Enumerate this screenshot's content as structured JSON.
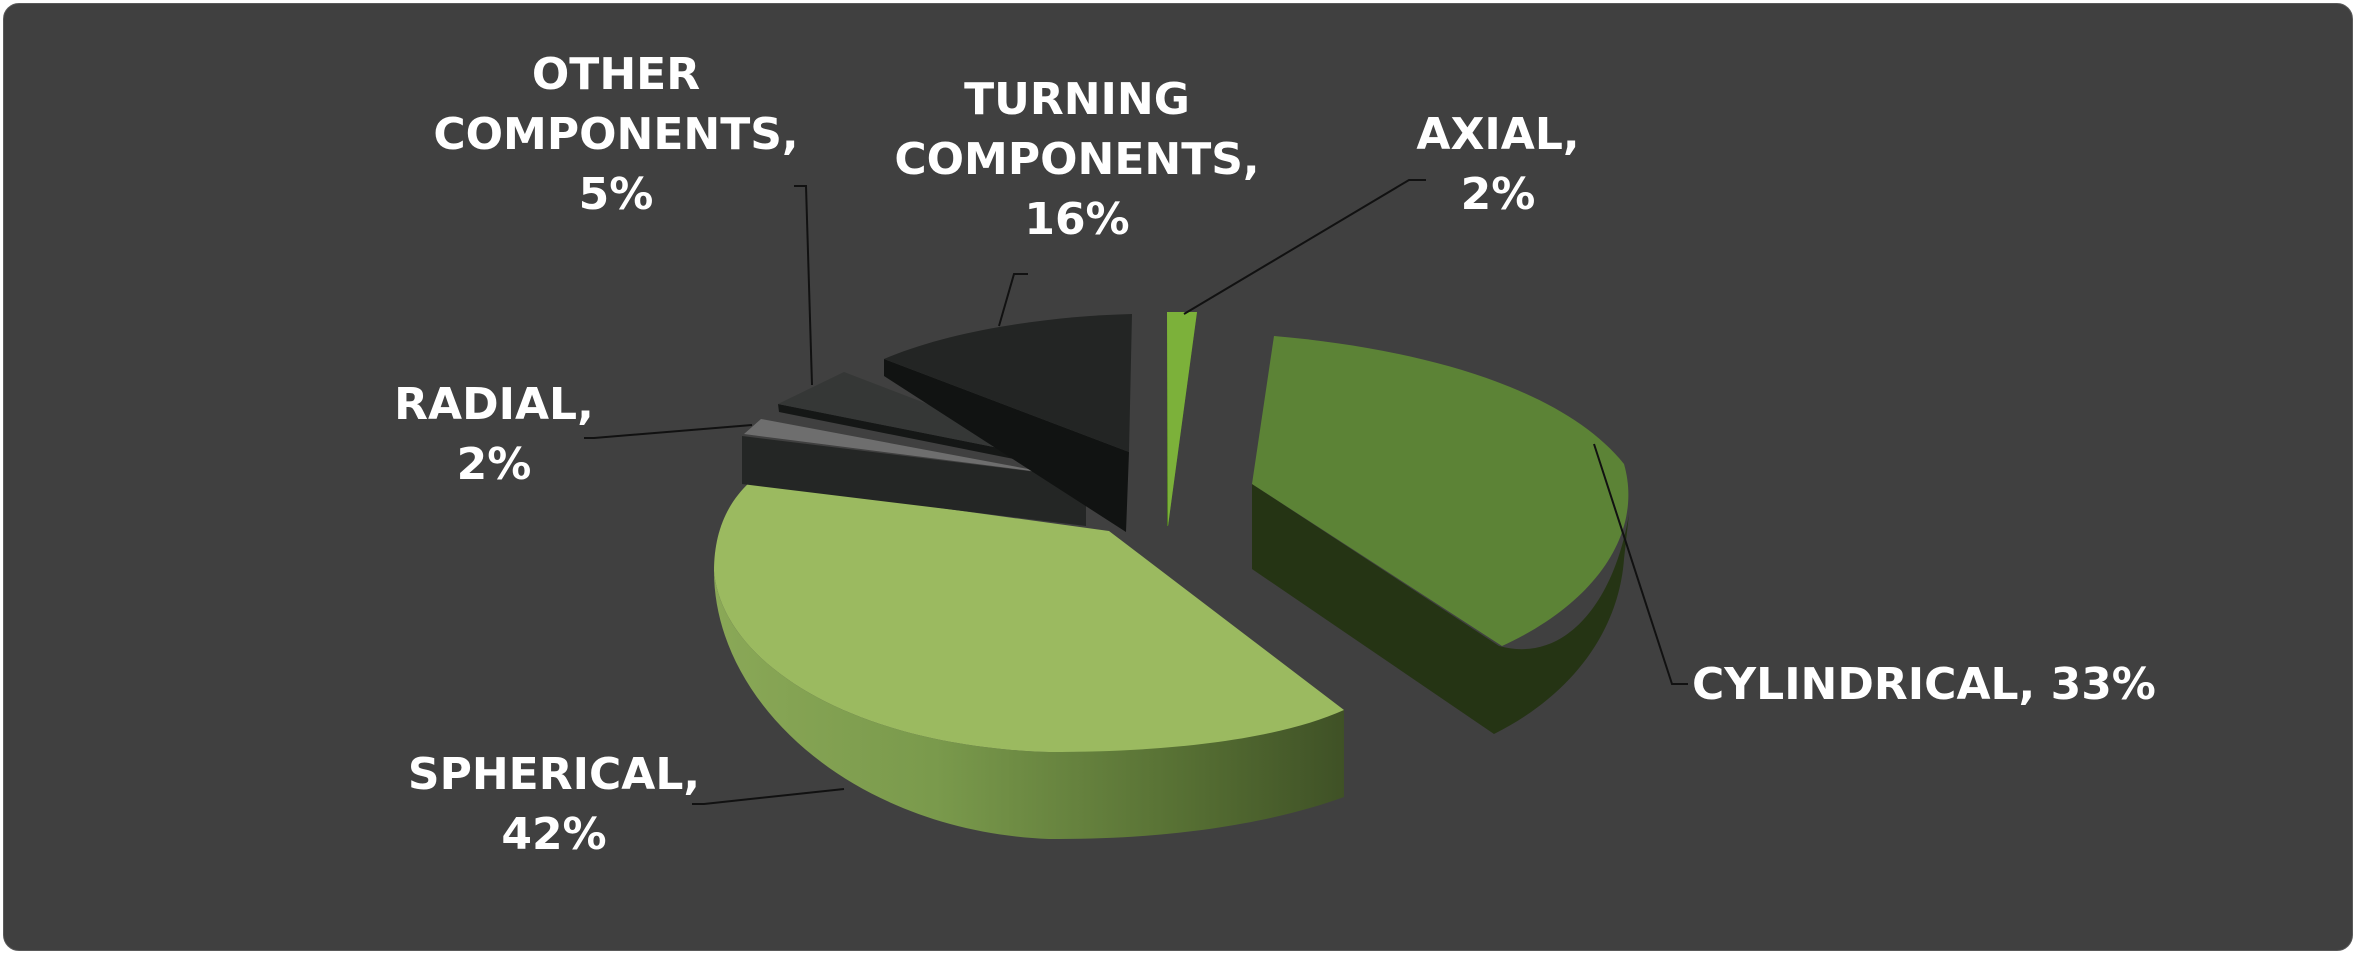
{
  "chart_data": {
    "type": "pie",
    "style": "3d-exploded",
    "slices": [
      {
        "label_lines": [
          "AXIAL,",
          "2%"
        ],
        "value": 2,
        "color": "#7cb13a"
      },
      {
        "label_lines": [
          "CYLINDRICAL, 33%"
        ],
        "value": 33,
        "color": "#5c8336"
      },
      {
        "label_lines": [
          "SPHERICAL,",
          "42%"
        ],
        "value": 42,
        "color": "#9bba60"
      },
      {
        "label_lines": [
          "RADIAL,",
          "2%"
        ],
        "value": 2,
        "color": "#6e6e6e"
      },
      {
        "label_lines": [
          "OTHER",
          "COMPONENTS,",
          "5%"
        ],
        "value": 5,
        "color": "#353736"
      },
      {
        "label_lines": [
          "TURNING",
          "COMPONENTS,",
          "16%"
        ],
        "value": 16,
        "color": "#232524"
      }
    ],
    "legend": "none",
    "data_labels": "outside with leader lines"
  }
}
